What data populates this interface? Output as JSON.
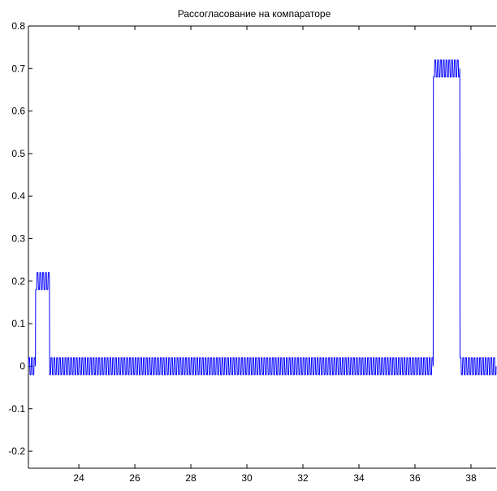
{
  "chart_data": {
    "type": "line",
    "title": "Рассогласование на компараторе",
    "xlabel": "",
    "ylabel": "",
    "xlim": [
      22.2,
      38.9
    ],
    "ylim": [
      -0.24,
      0.8
    ],
    "x_ticks": [
      24,
      26,
      28,
      30,
      32,
      34,
      36,
      38
    ],
    "x_tick_labels": [
      "24",
      "26",
      "28",
      "30",
      "32",
      "34",
      "36",
      "38"
    ],
    "y_ticks": [
      -0.2,
      -0.1,
      0,
      0.1,
      0.2,
      0.3,
      0.4,
      0.5,
      0.6,
      0.7,
      0.8
    ],
    "y_tick_labels": [
      "-0.2",
      "-0.1",
      "0",
      "0.1",
      "0.2",
      "0.3",
      "0.4",
      "0.5",
      "0.6",
      "0.7",
      "0.8"
    ],
    "grid": false,
    "line_color": "#0000ff",
    "series": [
      {
        "ripple_amplitude": 0.02,
        "ripple_period": 0.1,
        "segments": [
          {
            "x_start": 22.2,
            "x_end": 22.45,
            "level": 0
          },
          {
            "x_start": 22.45,
            "x_end": 22.55,
            "level": 0.2
          },
          {
            "x_start": 22.55,
            "x_end": 22.95,
            "level": 0.2
          },
          {
            "x_start": 22.95,
            "x_end": 23.05,
            "level": 0
          },
          {
            "x_start": 23.05,
            "x_end": 36.65,
            "level": 0
          },
          {
            "x_start": 36.65,
            "x_end": 36.75,
            "level": 0.7
          },
          {
            "x_start": 36.75,
            "x_end": 37.6,
            "level": 0.7
          },
          {
            "x_start": 37.6,
            "x_end": 37.7,
            "level": 0
          },
          {
            "x_start": 37.7,
            "x_end": 38.9,
            "level": 0
          }
        ]
      }
    ]
  }
}
